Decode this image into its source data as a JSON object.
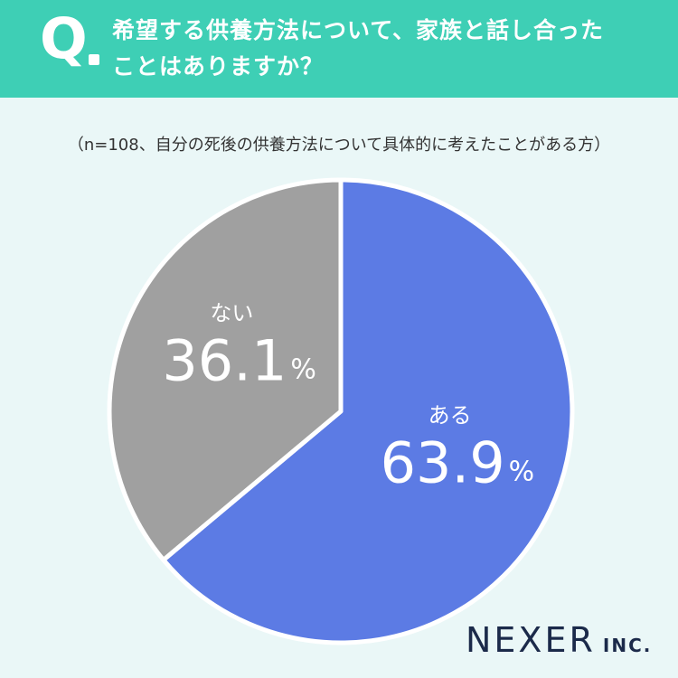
{
  "header": {
    "q_label": "Q",
    "question_line1": "希望する供養方法について、家族と話し合った",
    "question_line2": "ことはありますか？"
  },
  "note": "（n=108、自分の死後の供養方法について具体的に考えたことがある方）",
  "chart_data": {
    "type": "pie",
    "slices": [
      {
        "label": "ある",
        "value": 63.9,
        "display": "63.9",
        "unit": "%",
        "color": "#5c7be4"
      },
      {
        "label": "ない",
        "value": 36.1,
        "display": "36.1",
        "unit": "%",
        "color": "#a0a0a0"
      }
    ],
    "start": "12 o'clock",
    "direction": "clockwise"
  },
  "logo": {
    "main": "NEXER",
    "suffix": "INC."
  }
}
